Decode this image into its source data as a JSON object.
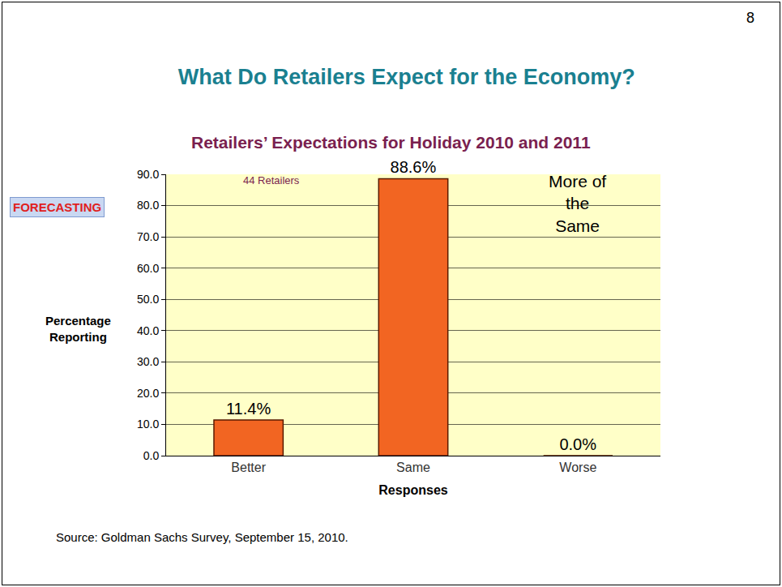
{
  "chart_data": {
    "type": "bar",
    "title": "What Do Retailers Expect for the Economy?",
    "subtitle": "Retailers’ Expectations for Holiday 2010 and 2011",
    "x_label": "Responses",
    "y_label": "Percentage Reporting",
    "categories": [
      "Better",
      "Same",
      "Worse"
    ],
    "values": [
      11.4,
      88.6,
      0.0
    ],
    "value_labels": [
      "11.4%",
      "88.6%",
      "0.0%"
    ],
    "data_labels": true,
    "color": "#f26522",
    "ylim": [
      0,
      90
    ],
    "yticks": [
      {
        "value": 0,
        "label": "0.0"
      },
      {
        "value": 10,
        "label": "10.0"
      },
      {
        "value": 20,
        "label": "20.0"
      },
      {
        "value": 30,
        "label": "30.0"
      },
      {
        "value": 40,
        "label": "40.0"
      },
      {
        "value": 50,
        "label": "50.0"
      },
      {
        "value": 60,
        "label": "60.0"
      },
      {
        "value": 70,
        "label": "70.0"
      },
      {
        "value": 80,
        "label": "80.0"
      },
      {
        "value": 90,
        "label": "90.0"
      }
    ],
    "grid": true,
    "annotations": [
      "44 Retailers",
      "More of the Same"
    ],
    "logo_text": "FORECASTING",
    "source": "Source: Goldman Sachs Survey, September 15, 2010.",
    "page_number": "8"
  }
}
